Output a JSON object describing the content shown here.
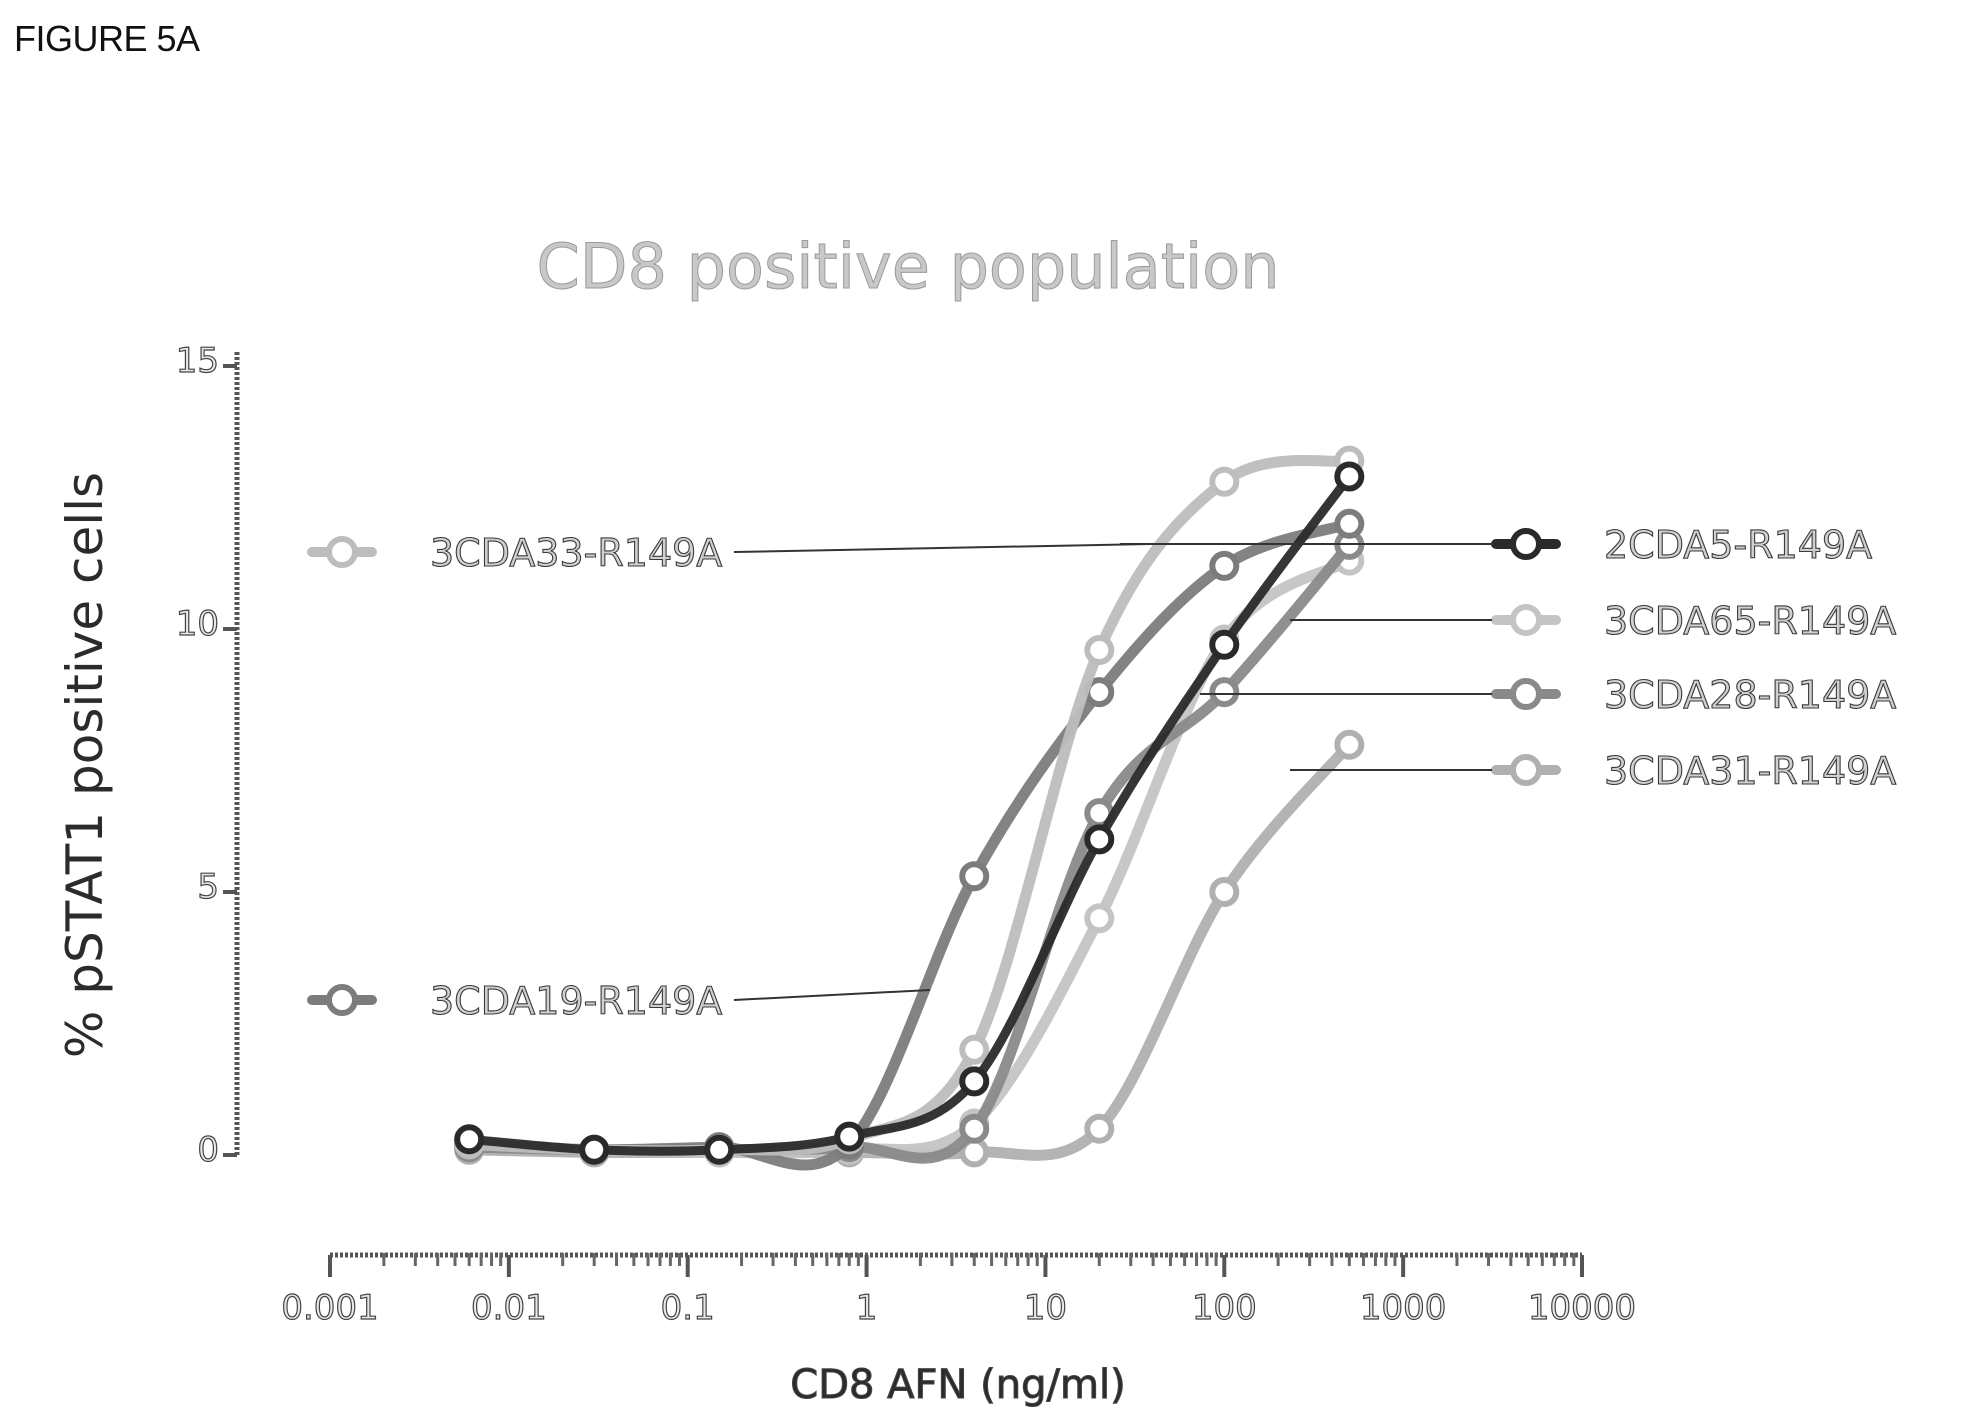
{
  "figure_label": "FIGURE 5A",
  "chart_data": {
    "type": "line",
    "title": "CD8 positive population",
    "xlabel": "CD8 AFN (ng/ml)",
    "ylabel": "% pSTAT1 positive cells",
    "x_scale": "log",
    "xlim": [
      0.001,
      10000
    ],
    "ylim": [
      0,
      15
    ],
    "x_ticks": [
      "0.001",
      "0.01",
      "0.1",
      "1",
      "10",
      "100",
      "1000",
      "10000"
    ],
    "y_ticks": [
      "0",
      "5",
      "10",
      "15"
    ],
    "grid": false,
    "legend_placement": "left and right, with leader lines",
    "x": [
      0.006,
      0.03,
      0.15,
      0.8,
      4,
      20,
      100,
      500
    ],
    "series": [
      {
        "name": "2CDA5-R149A",
        "color": "#2a2a2a",
        "values": [
          0.3,
          0.1,
          0.1,
          0.35,
          1.4,
          6.0,
          9.7,
          12.9
        ]
      },
      {
        "name": "3CDA65-R149A",
        "color": "#c4c4c4",
        "values": [
          0.2,
          0.1,
          0.05,
          0.1,
          0.6,
          4.5,
          9.8,
          11.3
        ]
      },
      {
        "name": "3CDA28-R149A",
        "color": "#8a8a8a",
        "values": [
          0.15,
          0.1,
          0.1,
          0.15,
          0.5,
          6.5,
          8.8,
          11.6
        ]
      },
      {
        "name": "3CDA31-R149A",
        "color": "#b0b0b0",
        "values": [
          0.1,
          0.05,
          0.05,
          0.05,
          0.05,
          0.5,
          5.0,
          7.8
        ]
      },
      {
        "name": "3CDA33-R149A",
        "color": "#bdbdbd",
        "values": [
          0.2,
          0.1,
          0.1,
          0.3,
          2.0,
          9.6,
          12.8,
          13.2
        ]
      },
      {
        "name": "3CDA19-R149A",
        "color": "#7c7c7c",
        "values": [
          0.2,
          0.1,
          0.15,
          0.2,
          5.3,
          8.8,
          11.2,
          12.0
        ]
      }
    ]
  }
}
